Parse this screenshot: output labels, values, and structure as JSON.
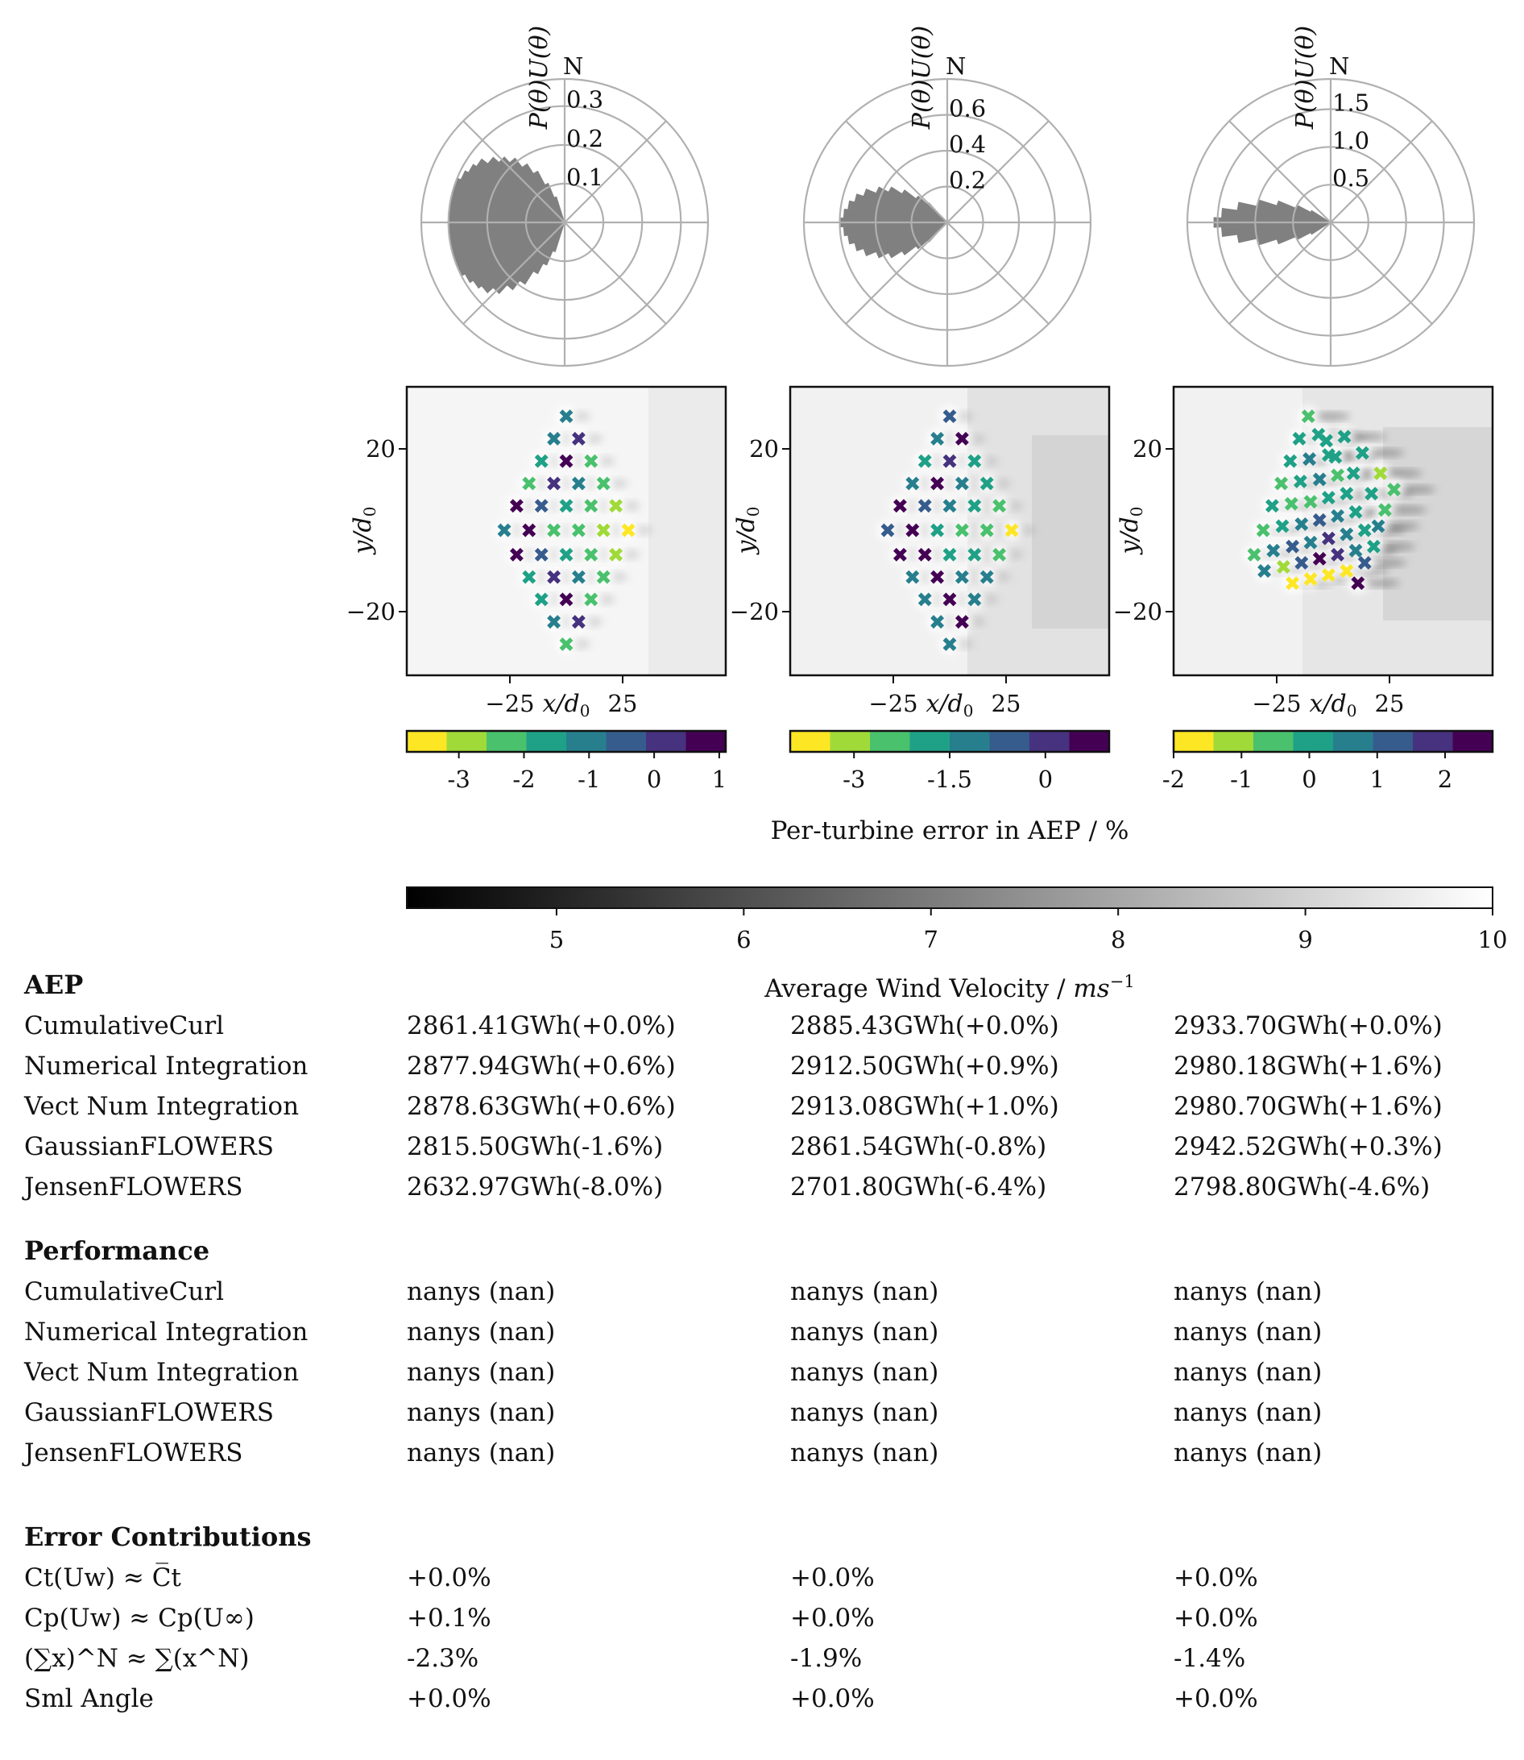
{
  "chart_data": [
    {
      "type": "polar-bar",
      "panel": 1,
      "ylabel": "P(θ)U(θ)",
      "north_label": "N",
      "r_ticks": [
        0.1,
        0.2,
        0.3
      ],
      "r_tick_labels": [
        "0.1",
        "0.2",
        "0.3"
      ],
      "r_max": 0.37,
      "directions_deg_from_north": [
        200,
        205,
        210,
        215,
        220,
        225,
        230,
        235,
        240,
        245,
        250,
        255,
        260,
        265,
        270,
        275,
        280,
        285,
        290,
        295,
        300,
        305,
        310,
        315,
        320,
        325,
        330,
        335,
        340
      ],
      "values": [
        0.08,
        0.12,
        0.15,
        0.19,
        0.22,
        0.25,
        0.27,
        0.28,
        0.29,
        0.3,
        0.3,
        0.3,
        0.3,
        0.3,
        0.3,
        0.3,
        0.3,
        0.3,
        0.3,
        0.29,
        0.28,
        0.27,
        0.25,
        0.23,
        0.21,
        0.18,
        0.15,
        0.11,
        0.07
      ]
    },
    {
      "type": "polar-bar",
      "panel": 2,
      "ylabel": "P(θ)U(θ)",
      "north_label": "N",
      "r_ticks": [
        0.2,
        0.4,
        0.6
      ],
      "r_tick_labels": [
        "0.2",
        "0.4",
        "0.6"
      ],
      "r_max": 0.8,
      "directions_deg_from_north": [
        225,
        230,
        235,
        240,
        245,
        250,
        255,
        260,
        265,
        270,
        275,
        280,
        285,
        290,
        295,
        300,
        305,
        310,
        315
      ],
      "values": [
        0.15,
        0.22,
        0.3,
        0.37,
        0.43,
        0.49,
        0.53,
        0.56,
        0.58,
        0.6,
        0.58,
        0.56,
        0.53,
        0.49,
        0.43,
        0.37,
        0.3,
        0.22,
        0.15
      ]
    },
    {
      "type": "polar-bar",
      "panel": 3,
      "ylabel": "P(θ)U(θ)",
      "north_label": "N",
      "r_ticks": [
        0.5,
        1.0,
        1.5
      ],
      "r_tick_labels": [
        "0.5",
        "1.0",
        "1.5"
      ],
      "r_max": 1.9,
      "directions_deg_from_north": [
        240,
        245,
        250,
        255,
        260,
        265,
        270,
        275,
        280,
        285,
        290,
        295,
        300
      ],
      "values": [
        0.3,
        0.5,
        0.75,
        1.0,
        1.25,
        1.45,
        1.55,
        1.45,
        1.25,
        1.0,
        0.75,
        0.5,
        0.3
      ]
    },
    {
      "type": "scatter",
      "panel": 1,
      "xlabel": "x/d0",
      "ylabel": "y/d0",
      "x_ticks": [
        "−25",
        "25"
      ],
      "y_ticks": [
        "20",
        "−20"
      ],
      "colorbar_ticks": [
        "-3",
        "-2",
        "-1",
        "0",
        "1"
      ],
      "colorbar_range": [
        -3.8,
        1.1
      ],
      "points": [
        [
          0,
          28,
          -1.3
        ],
        [
          -5.5,
          22.5,
          -1.0
        ],
        [
          5.5,
          22.5,
          0.1
        ],
        [
          -11,
          17,
          -1.8
        ],
        [
          0,
          17,
          0.8
        ],
        [
          11,
          17,
          -2.5
        ],
        [
          -16.5,
          11.5,
          -2.0
        ],
        [
          -5.5,
          11.5,
          0.2
        ],
        [
          5.5,
          11.5,
          -1.1
        ],
        [
          16.5,
          11.5,
          -2.5
        ],
        [
          -22,
          6,
          0.6
        ],
        [
          -11,
          6,
          -0.5
        ],
        [
          0,
          6,
          -1.5
        ],
        [
          11,
          6,
          -2.5
        ],
        [
          22,
          6,
          -2.8
        ],
        [
          -27.5,
          0,
          -1.0
        ],
        [
          -16.5,
          0,
          0.8
        ],
        [
          -5.5,
          0,
          -2.5
        ],
        [
          5.5,
          0,
          -2.3
        ],
        [
          16.5,
          0,
          -2.8
        ],
        [
          27.5,
          0,
          -3.8
        ],
        [
          -22,
          -6,
          0.6
        ],
        [
          -11,
          -6,
          -0.5
        ],
        [
          0,
          -6,
          -1.8
        ],
        [
          11,
          -6,
          -2.5
        ],
        [
          22,
          -6,
          -3.0
        ],
        [
          -16.5,
          -11.5,
          -1.8
        ],
        [
          -5.5,
          -11.5,
          0.0
        ],
        [
          5.5,
          -11.5,
          -1.0
        ],
        [
          16.5,
          -11.5,
          -2.3
        ],
        [
          -11,
          -17,
          -1.8
        ],
        [
          0,
          -17,
          0.9
        ],
        [
          11,
          -17,
          -2.2
        ],
        [
          -5.5,
          -22.5,
          -1.3
        ],
        [
          5.5,
          -22.5,
          0.1
        ],
        [
          0,
          -28,
          -2.0
        ]
      ]
    },
    {
      "type": "scatter",
      "panel": 2,
      "xlabel": "x/d0",
      "ylabel": "y/d0",
      "x_ticks": [
        "−25",
        "25"
      ],
      "y_ticks": [
        "20",
        "−20"
      ],
      "colorbar_ticks": [
        "-3",
        "-1.5",
        "0"
      ],
      "colorbar_range": [
        -4.0,
        1.0
      ],
      "points": [
        [
          0,
          28,
          -0.3
        ],
        [
          -5.5,
          22.5,
          -1.1
        ],
        [
          5.5,
          22.5,
          0.5
        ],
        [
          -11,
          17,
          -1.6
        ],
        [
          0,
          17,
          0.2
        ],
        [
          11,
          17,
          -1.6
        ],
        [
          -16.5,
          11.5,
          -1.4
        ],
        [
          -5.5,
          11.5,
          0.8
        ],
        [
          5.5,
          11.5,
          -1.0
        ],
        [
          16.5,
          11.5,
          -1.6
        ],
        [
          -22,
          6,
          0.5
        ],
        [
          -11,
          6,
          -0.6
        ],
        [
          0,
          6,
          -1.3
        ],
        [
          11,
          6,
          -1.8
        ],
        [
          22,
          6,
          -2.5
        ],
        [
          -27.5,
          0,
          -0.3
        ],
        [
          -16.5,
          0,
          0.7
        ],
        [
          -5.5,
          0,
          -2.0
        ],
        [
          5.5,
          0,
          -2.3
        ],
        [
          16.5,
          0,
          -2.5
        ],
        [
          27.5,
          0,
          -3.9
        ],
        [
          -22,
          -6,
          0.5
        ],
        [
          -11,
          -6,
          0.8
        ],
        [
          0,
          -6,
          -1.6
        ],
        [
          11,
          -6,
          -1.8
        ],
        [
          22,
          -6,
          -2.7
        ],
        [
          -16.5,
          -11.5,
          -1.1
        ],
        [
          -5.5,
          -11.5,
          0.7
        ],
        [
          5.5,
          -11.5,
          -1.0
        ],
        [
          16.5,
          -11.5,
          -1.3
        ],
        [
          -11,
          -17,
          -1.4
        ],
        [
          0,
          -17,
          0.7
        ],
        [
          11,
          -17,
          -1.4
        ],
        [
          -5.5,
          -22.5,
          -1.1
        ],
        [
          5.5,
          -22.5,
          0.5
        ],
        [
          0,
          -28,
          -1.1
        ]
      ]
    },
    {
      "type": "scatter",
      "panel": 3,
      "xlabel": "x/d0",
      "ylabel": "y/d0",
      "x_ticks": [
        "−25",
        "25"
      ],
      "y_ticks": [
        "20",
        "−20"
      ],
      "colorbar_ticks": [
        "-2",
        "-1",
        "0",
        "1",
        "2"
      ],
      "colorbar_range": [
        -2.0,
        2.7
      ],
      "points": [
        [
          -11,
          28,
          -0.3
        ],
        [
          -15,
          22.5,
          0.0
        ],
        [
          -6.5,
          23.5,
          0.3
        ],
        [
          -19,
          17,
          -0.2
        ],
        [
          -10.5,
          17.5,
          0.4
        ],
        [
          -2,
          18.5,
          -0.1
        ],
        [
          -3,
          22,
          -0.1
        ],
        [
          -23,
          11.5,
          -0.4
        ],
        [
          -14.5,
          12,
          -0.2
        ],
        [
          -6,
          12.5,
          0.8
        ],
        [
          2,
          13.5,
          -0.3
        ],
        [
          1,
          18,
          0.0
        ],
        [
          5,
          23,
          -0.1
        ],
        [
          -27,
          6,
          -0.1
        ],
        [
          -18.5,
          6.5,
          -0.4
        ],
        [
          -10,
          7,
          -0.3
        ],
        [
          -2,
          8,
          0.3
        ],
        [
          6,
          9,
          0.3
        ],
        [
          9,
          14,
          -0.2
        ],
        [
          13,
          19,
          0.1
        ],
        [
          -31,
          0,
          -0.5
        ],
        [
          -22.5,
          1,
          0.2
        ],
        [
          -14,
          1.5,
          0.6
        ],
        [
          -6,
          2.5,
          1.5
        ],
        [
          2,
          3.5,
          0.4
        ],
        [
          10,
          4.5,
          0.1
        ],
        [
          17,
          9,
          -0.2
        ],
        [
          21,
          14,
          -1.0
        ],
        [
          27,
          10,
          -0.7
        ],
        [
          -35,
          -6,
          -0.3
        ],
        [
          -26.5,
          -5,
          0.5
        ],
        [
          -18,
          -4,
          1.2
        ],
        [
          -10,
          -3,
          0.8
        ],
        [
          -2,
          -2,
          1.8
        ],
        [
          6,
          -1,
          0.4
        ],
        [
          14,
          0,
          0.0
        ],
        [
          23,
          5,
          -0.4
        ],
        [
          -30.5,
          -10,
          0.8
        ],
        [
          -22,
          -9,
          -1.4
        ],
        [
          -14,
          -8,
          1.5
        ],
        [
          -6,
          -7,
          2.5
        ],
        [
          2,
          -6,
          2.0
        ],
        [
          10,
          -5,
          0.9
        ],
        [
          18,
          -4,
          0.3
        ],
        [
          20,
          1,
          0.4
        ],
        [
          -18,
          -13,
          -1.9
        ],
        [
          -10,
          -12,
          -1.7
        ],
        [
          -2,
          -11,
          -1.9
        ],
        [
          6,
          -10,
          -1.9
        ],
        [
          11,
          -13,
          2.5
        ],
        [
          14,
          -8,
          1.1
        ]
      ]
    },
    {
      "type": "colorbar",
      "label": "Average Wind Velocity / ms−1",
      "range": [
        4.2,
        10
      ],
      "ticks": [
        5,
        6,
        7,
        8,
        9,
        10
      ],
      "colormap": "gray"
    }
  ],
  "labels": {
    "north": "N",
    "polar_ylabel": "P(θ)U(θ)",
    "x_var": "x",
    "y_var": "y",
    "over": "/",
    "d": "d",
    "sub0": "0",
    "per_turbine": "Per-turbine error in AEP / %",
    "avg_vel_prefix": "Average Wind Velocity / ",
    "avg_vel_ms": "ms",
    "avg_vel_exp": "−1",
    "xt_m25": "−25",
    "xt_25": "25",
    "yt_20": "20",
    "yt_m20": "−20"
  },
  "table": {
    "aep": {
      "heading": "AEP",
      "rows": [
        {
          "name": "CumulativeCurl",
          "c1": "2861.41GWh(+0.0%)",
          "c2": "2885.43GWh(+0.0%)",
          "c3": "2933.70GWh(+0.0%)"
        },
        {
          "name": "Numerical Integration",
          "c1": "2877.94GWh(+0.6%)",
          "c2": "2912.50GWh(+0.9%)",
          "c3": "2980.18GWh(+1.6%)"
        },
        {
          "name": "Vect Num Integration",
          "c1": "2878.63GWh(+0.6%)",
          "c2": "2913.08GWh(+1.0%)",
          "c3": "2980.70GWh(+1.6%)"
        },
        {
          "name": "GaussianFLOWERS",
          "c1": "2815.50GWh(-1.6%)",
          "c2": "2861.54GWh(-0.8%)",
          "c3": "2942.52GWh(+0.3%)"
        },
        {
          "name": "JensenFLOWERS",
          "c1": "2632.97GWh(-8.0%)",
          "c2": "2701.80GWh(-6.4%)",
          "c3": "2798.80GWh(-4.6%)"
        }
      ]
    },
    "performance": {
      "heading": "Performance",
      "rows": [
        {
          "name": "CumulativeCurl",
          "c1": "nanys (nan)",
          "c2": "nanys (nan)",
          "c3": "nanys (nan)"
        },
        {
          "name": "Numerical Integration",
          "c1": "nanys (nan)",
          "c2": "nanys (nan)",
          "c3": "nanys (nan)"
        },
        {
          "name": "Vect Num Integration",
          "c1": "nanys (nan)",
          "c2": "nanys (nan)",
          "c3": "nanys (nan)"
        },
        {
          "name": "GaussianFLOWERS",
          "c1": "nanys (nan)",
          "c2": "nanys (nan)",
          "c3": "nanys (nan)"
        },
        {
          "name": "JensenFLOWERS",
          "c1": "nanys (nan)",
          "c2": "nanys (nan)",
          "c3": "nanys (nan)"
        }
      ]
    },
    "errors": {
      "heading": "Error Contributions",
      "rows": [
        {
          "name": "Ct(Uw) ≈ C̅t",
          "c1": "+0.0%",
          "c2": "+0.0%",
          "c3": "+0.0%"
        },
        {
          "name": "Cp(Uw) ≈ Cp(U∞)",
          "c1": "+0.1%",
          "c2": "+0.0%",
          "c3": "+0.0%"
        },
        {
          "name": "(∑x)^N ≈ ∑(x^N)",
          "c1": "-2.3%",
          "c2": "-1.9%",
          "c3": "-1.4%"
        },
        {
          "name": "Sml Angle",
          "c1": "+0.0%",
          "c2": "+0.0%",
          "c3": "+0.0%"
        }
      ]
    }
  },
  "colors": {
    "wind_bar": "#808080",
    "polar_grid": "#b0b0b0",
    "axis": "#111111",
    "viridis": [
      "#fde725",
      "#a0da39",
      "#4ac16d",
      "#1fa187",
      "#277f8e",
      "#365c8d",
      "#46327e",
      "#440154"
    ]
  }
}
